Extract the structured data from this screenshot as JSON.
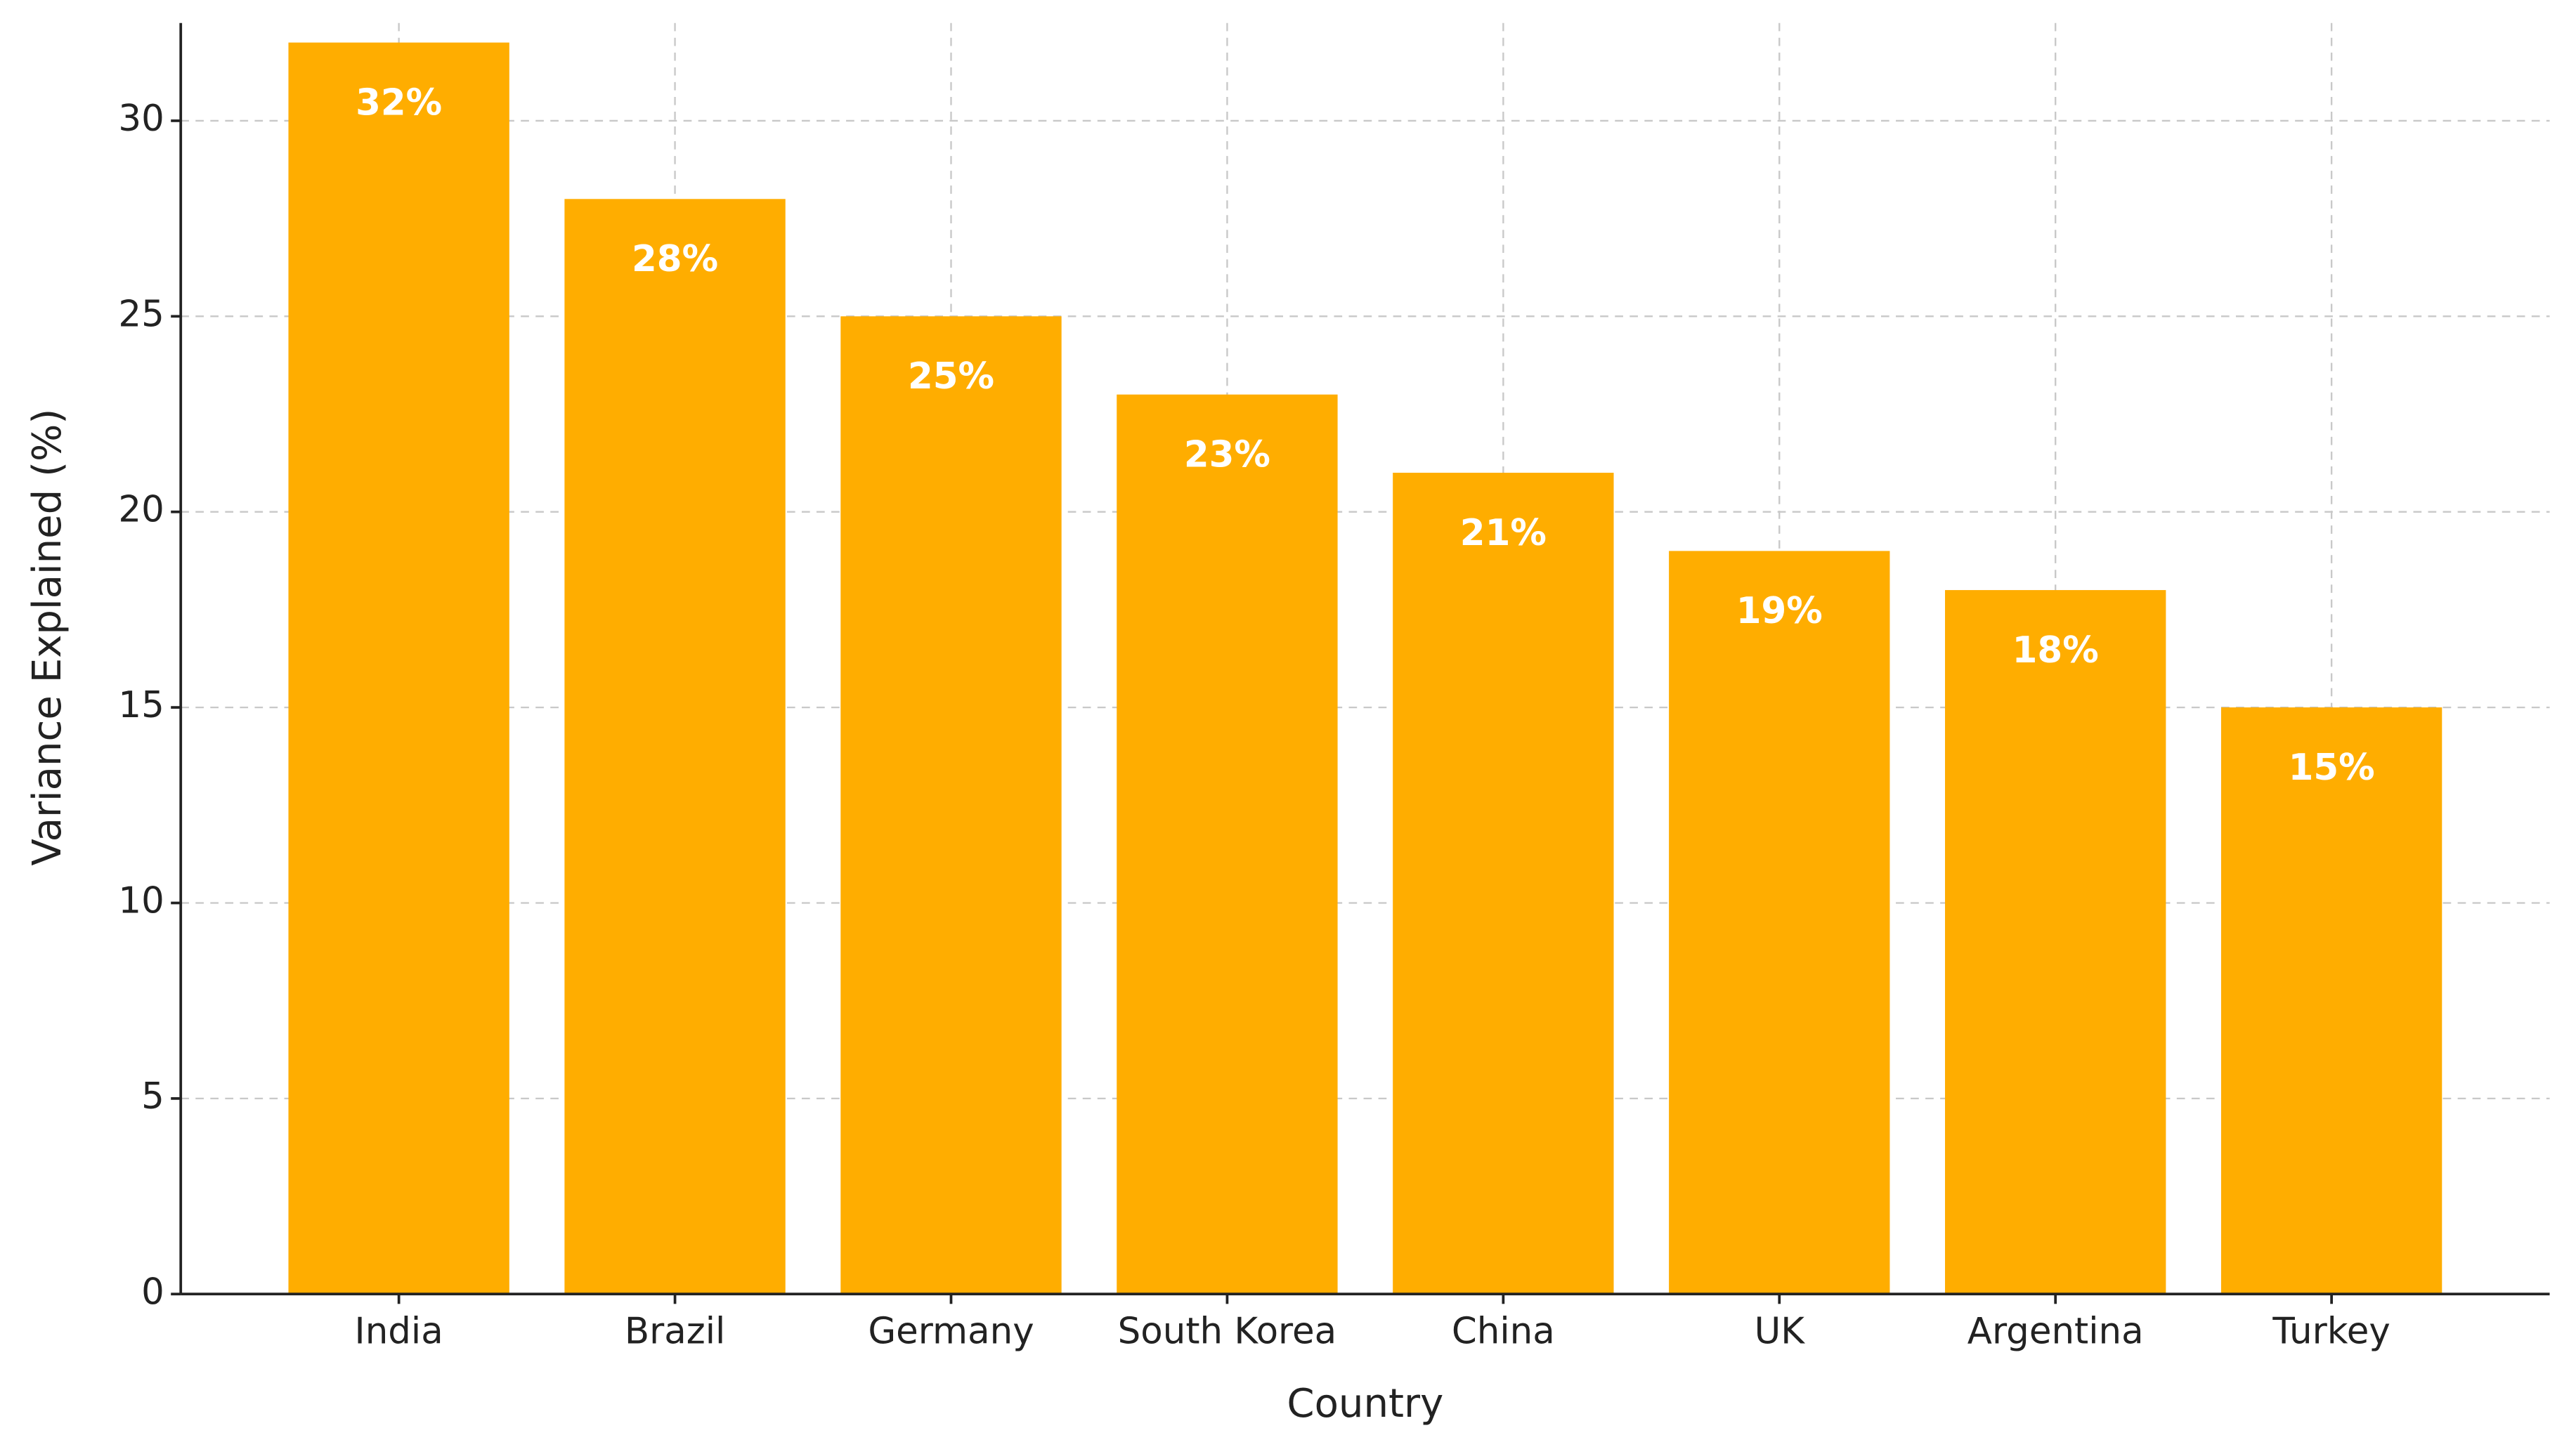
{
  "chart_data": {
    "type": "bar",
    "x_label": "Country",
    "y_label": "Variance Explained (%)",
    "categories": [
      "India",
      "Brazil",
      "Germany",
      "South Korea",
      "China",
      "UK",
      "Argentina",
      "Turkey"
    ],
    "values": [
      32,
      28,
      25,
      23,
      21,
      19,
      18,
      15
    ],
    "value_labels": [
      "32%",
      "28%",
      "25%",
      "23%",
      "21%",
      "19%",
      "18%",
      "15%"
    ],
    "color": "#ffad00",
    "ylim": [
      0,
      32.5
    ],
    "yticks": [
      0,
      5,
      10,
      15,
      20,
      25,
      30
    ],
    "grid": true
  }
}
